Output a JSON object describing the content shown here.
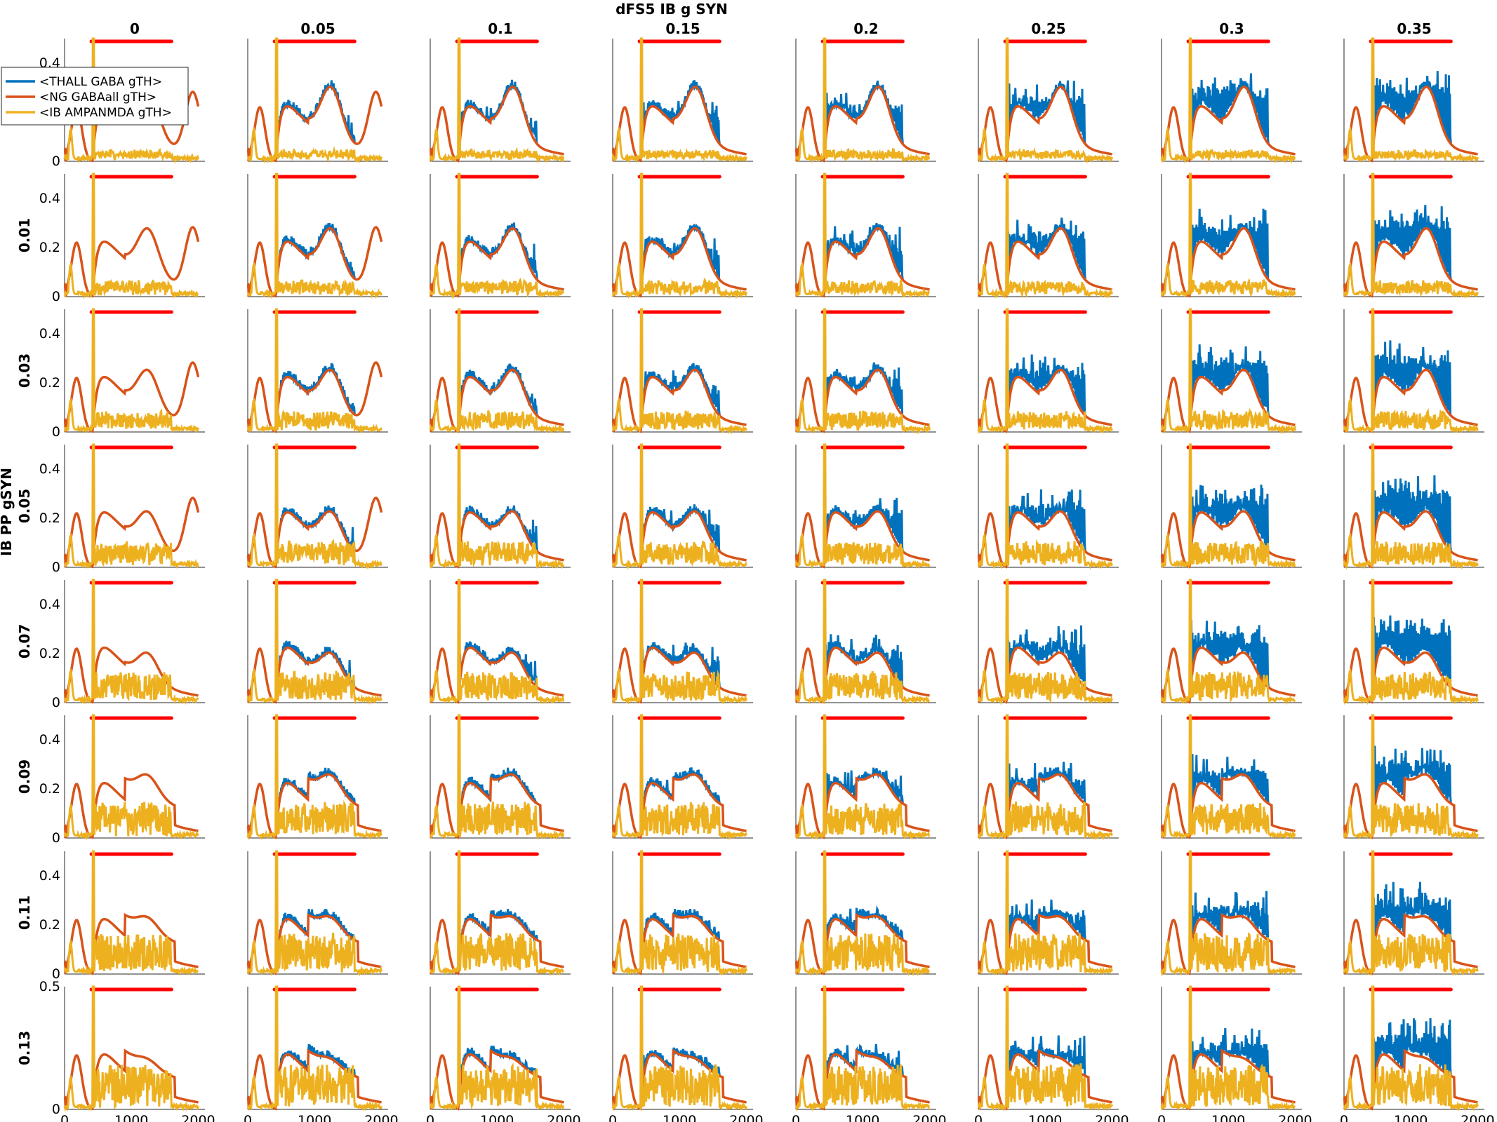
{
  "chart_data": {
    "type": "line",
    "title": "dFS5 IB g SYN",
    "row_axis_label": "IB PP gSYN",
    "column_values": [
      "0",
      "0.05",
      "0.1",
      "0.15",
      "0.2",
      "0.25",
      "0.3",
      "0.35"
    ],
    "row_values": [
      "0",
      "0.01",
      "0.03",
      "0.05",
      "0.07",
      "0.09",
      "0.11",
      "0.13"
    ],
    "xlim": [
      0,
      2100
    ],
    "ylim": [
      0,
      0.5
    ],
    "x_ticks": [
      0,
      1000,
      2000
    ],
    "y_ticks": [
      0,
      0.2,
      0.4
    ],
    "y_ticks_last_row": [
      0,
      0.5
    ],
    "x_ticks_shown_on": "bottom row only",
    "y_ticks_shown_on": "first column only",
    "grid": false,
    "legend_position": "top-left",
    "stimulus_interval": [
      400,
      1600
    ],
    "stimulus_color": "#ff0000",
    "series": [
      {
        "name": "<THALL GABA gTH>",
        "color": "#0072bd"
      },
      {
        "name": "<NG GABAall gTH>",
        "color": "#d95319"
      },
      {
        "name": "<IB AMPANMDA gTH>",
        "color": "#edb120"
      }
    ],
    "panel_summary_note": "Each panel plots the three series over time 0-2000; blue shows large fluctuating plateau during stimulus for higher dFS5 values; orange shows slow rise-and-decay waves peaking ~0.3-0.35; yellow shows brief spikes near 0.5 and low-level activity."
  }
}
